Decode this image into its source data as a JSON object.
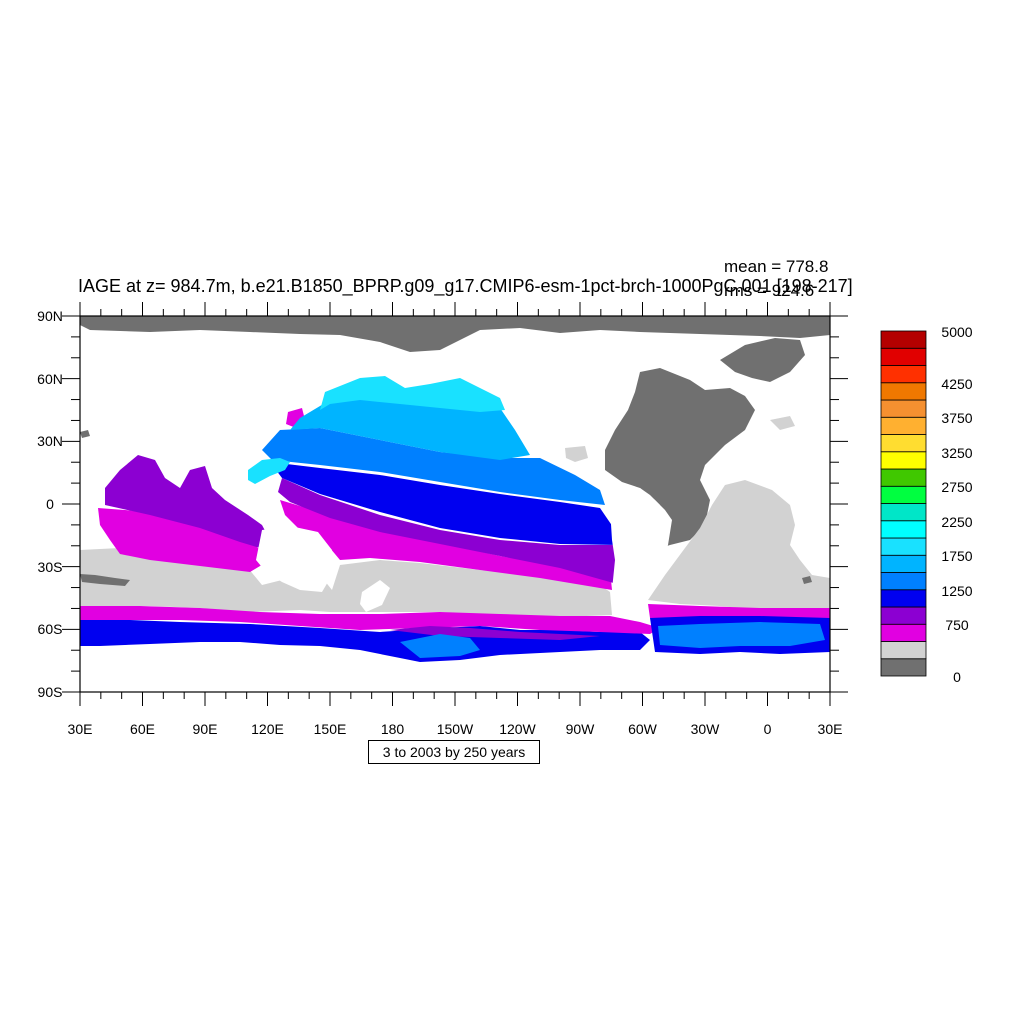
{
  "title": "IAGE at z= 984.7m, b.e21.B1850_BPRP.g09_g17.CMIP6-esm-1pct-brch-1000PgC.001 [198-217]",
  "stats": {
    "mean": "mean = 778.8",
    "rms": "rms = 924.6"
  },
  "contour_info": "3 to 2003 by 250 years",
  "axes": {
    "lat_ticks": [
      "90N",
      "60N",
      "30N",
      "0",
      "30S",
      "60S",
      "90S"
    ],
    "lon_ticks": [
      "30E",
      "60E",
      "90E",
      "120E",
      "150E",
      "180",
      "150W",
      "120W",
      "90W",
      "60W",
      "30W",
      "0",
      "30E"
    ]
  },
  "colorbar": {
    "colors": [
      "#707070",
      "#d2d2d2",
      "#e100e1",
      "#8c00d2",
      "#0000f0",
      "#0080ff",
      "#00b4ff",
      "#19e1ff",
      "#00ffff",
      "#00e6c8",
      "#00ff40",
      "#40c800",
      "#ffff00",
      "#ffdd30",
      "#ffb030",
      "#f59030",
      "#f07800",
      "#ff3000",
      "#e10000",
      "#b40000"
    ],
    "labels": [
      "0",
      "750",
      "1250",
      "1750",
      "2250",
      "2750",
      "3250",
      "3750",
      "4250",
      "5000"
    ]
  },
  "chart_data": {
    "type": "heatmap",
    "title": "IAGE at z= 984.7m, b.e21.B1850_BPRP.g09_g17.CMIP6-esm-1pct-brch-1000PgC.001 [198-217]",
    "variable": "IAGE",
    "depth": "z= 984.7m",
    "mean": 778.8,
    "rms": 924.6,
    "contour_levels": {
      "min": 3,
      "max": 2003,
      "interval": 250,
      "units": "years"
    },
    "lat_range": [
      -90,
      90
    ],
    "lon_range": [
      30,
      390
    ],
    "colorbar_labels": [
      0,
      750,
      1250,
      1750,
      2250,
      2750,
      3250,
      3750,
      4250,
      5000
    ]
  }
}
